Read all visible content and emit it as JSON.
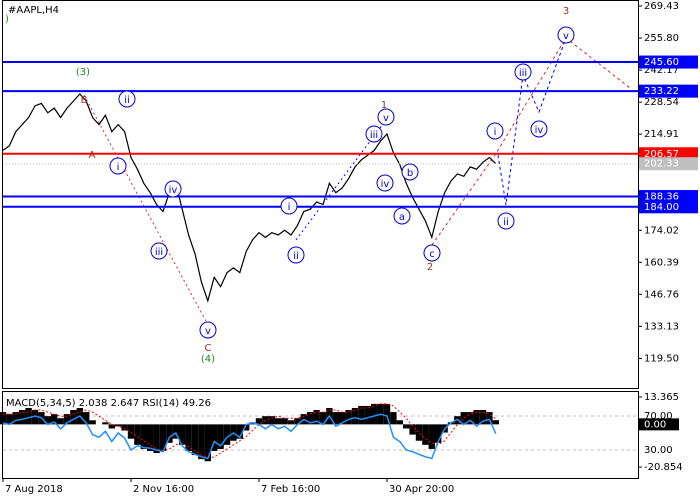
{
  "chart_data": [
    {
      "type": "line",
      "title": "#AAPL,H4",
      "color": "#000000",
      "categories": [
        "7 Aug 2018",
        null,
        null,
        null,
        null,
        null,
        null,
        null,
        null,
        null,
        null,
        null,
        null,
        null,
        null,
        null,
        null,
        null,
        null,
        null,
        "2 Nov 16:00",
        null,
        null,
        null,
        null,
        null,
        null,
        null,
        null,
        null,
        null,
        null,
        null,
        null,
        null,
        null,
        null,
        null,
        null,
        null,
        "7 Feb 16:00",
        null,
        null,
        null,
        null,
        null,
        null,
        null,
        null,
        null,
        null,
        null,
        null,
        null,
        null,
        null,
        null,
        null,
        null,
        null,
        "30 Apr 20:00",
        null,
        null,
        null,
        null,
        null,
        null,
        null,
        null,
        null,
        null,
        null,
        null,
        null,
        null,
        null,
        null,
        null
      ],
      "values": [
        208,
        210,
        216,
        219,
        222,
        227,
        228,
        224,
        226,
        222,
        226,
        229,
        232,
        229,
        222,
        219,
        223,
        216,
        219,
        216,
        205,
        200,
        194,
        190,
        185,
        182,
        190,
        194,
        183,
        172,
        164,
        152,
        144,
        154,
        150,
        156,
        158,
        156,
        165,
        170,
        173,
        171,
        173,
        172,
        174,
        172,
        176,
        182,
        183,
        186,
        185,
        194,
        190,
        192,
        196,
        201,
        204,
        206,
        208,
        212,
        215,
        207,
        202,
        194,
        188,
        183,
        178,
        171,
        182,
        190,
        195,
        198,
        197,
        201,
        200,
        203,
        205,
        202.33
      ],
      "ylim": [
        106.9,
        272.0
      ],
      "yticks": [
        269.43,
        {
          "value": 255.8,
          "label": "255.80"
        },
        242.17,
        228.54,
        214.91,
        174.02,
        160.39,
        146.76,
        133.13,
        {
          "value": 119.5,
          "label": "119.50"
        }
      ],
      "levels": [
        {
          "value": 245.6,
          "label": "245.60",
          "color": "#0000ff"
        },
        {
          "value": 233.22,
          "label": "233.22",
          "color": "#0000ff"
        },
        {
          "value": 206.57,
          "label": "206.57",
          "color": "#ff0000"
        },
        {
          "value": 188.36,
          "label": "188.36",
          "color": "#0000ff"
        },
        {
          "value": 184.0,
          "label": "184.00",
          "color": "#0000ff"
        }
      ],
      "current_price": {
        "value": 202.33,
        "label": "202.33"
      },
      "annotations": [
        {
          "text": ")",
          "color": "#1a8f1a",
          "circled": false
        },
        {
          "text": "(3)",
          "color": "#1a8f1a",
          "circled": false
        },
        {
          "text": "B",
          "color": "#a0302a",
          "circled": false
        },
        {
          "text": "A",
          "color": "#a0302a",
          "circled": false
        },
        {
          "text": "ii",
          "color": "#0000cc",
          "circled": true
        },
        {
          "text": "i",
          "color": "#0000cc",
          "circled": true
        },
        {
          "text": "iv",
          "color": "#0000cc",
          "circled": true
        },
        {
          "text": "iii",
          "color": "#0000cc",
          "circled": true
        },
        {
          "text": "v",
          "color": "#0000cc",
          "circled": true
        },
        {
          "text": "C",
          "color": "#a0302a",
          "circled": false
        },
        {
          "text": "(4)",
          "color": "#1a8f1a",
          "circled": false
        },
        {
          "text": "1",
          "color": "#a0302a",
          "circled": false
        },
        {
          "text": "v",
          "color": "#0000cc",
          "circled": true
        },
        {
          "text": "iii",
          "color": "#0000cc",
          "circled": true
        },
        {
          "text": "b",
          "color": "#0000cc",
          "circled": true
        },
        {
          "text": "iv",
          "color": "#0000cc",
          "circled": true
        },
        {
          "text": "a",
          "color": "#0000cc",
          "circled": true
        },
        {
          "text": "c",
          "color": "#0000cc",
          "circled": true
        },
        {
          "text": "2",
          "color": "#a0302a",
          "circled": false
        },
        {
          "text": "i",
          "color": "#0000cc",
          "circled": true
        },
        {
          "text": "ii",
          "color": "#0000cc",
          "circled": true
        },
        {
          "text": "3",
          "color": "#a0302a",
          "circled": false
        },
        {
          "text": "v",
          "color": "#0000cc",
          "circled": true
        },
        {
          "text": "iii",
          "color": "#0000cc",
          "circled": true
        },
        {
          "text": "iv",
          "color": "#0000cc",
          "circled": true
        },
        {
          "text": "i",
          "color": "#0000cc",
          "circled": true
        },
        {
          "text": "ii",
          "color": "#0000cc",
          "circled": true
        }
      ]
    },
    {
      "type": "indicator",
      "title": "MACD(5,34,5) 2.038 2.647 RSI(14) 49.26",
      "ylim": [
        -26.2,
        16.3
      ],
      "yticks": [
        13.365,
        {
          "value": 0,
          "label": "0.00"
        },
        -20.854
      ],
      "y2lim": [
        -2.9,
        99.4
      ],
      "y2ticks": [
        {
          "value": 70,
          "label": "70.00"
        },
        {
          "value": 30,
          "label": "30.00"
        }
      ],
      "series": [
        {
          "name": "MACD",
          "color": "#000000",
          "kind": "histogram",
          "values": [
            6,
            5,
            6,
            7,
            8,
            7,
            6,
            4,
            5,
            3,
            5,
            7,
            8,
            6,
            2,
            0,
            1,
            -2,
            -1,
            -3,
            -7,
            -10,
            -12,
            -13,
            -14,
            -13,
            -9,
            -7,
            -10,
            -13,
            -15,
            -17,
            -18,
            -13,
            -12,
            -10,
            -8,
            -7,
            -3,
            1,
            3,
            4,
            4,
            3,
            3,
            2,
            3,
            5,
            6,
            7,
            6,
            8,
            6,
            6,
            7,
            8,
            9,
            9,
            10,
            10,
            10,
            6,
            2,
            -2,
            -5,
            -8,
            -10,
            -12,
            -9,
            -4,
            1,
            4,
            6,
            6,
            7,
            7,
            6,
            2.038
          ]
        },
        {
          "name": "Signal",
          "color": "#ff0000",
          "kind": "dotted",
          "values": [
            5,
            5,
            5,
            6,
            6,
            7,
            7,
            6,
            5,
            4,
            4,
            5,
            6,
            7,
            6,
            4,
            2,
            0,
            -1,
            -2,
            -4,
            -6,
            -8,
            -10,
            -12,
            -13,
            -12,
            -10,
            -9,
            -11,
            -13,
            -15,
            -16,
            -16,
            -14,
            -12,
            -10,
            -8,
            -6,
            -3,
            0,
            2,
            3,
            4,
            3,
            3,
            3,
            4,
            5,
            6,
            6,
            7,
            7,
            6,
            6,
            7,
            8,
            8,
            9,
            10,
            10,
            9,
            6,
            3,
            -1,
            -4,
            -7,
            -9,
            -10,
            -8,
            -4,
            0,
            3,
            5,
            6,
            6,
            5,
            2.647
          ]
        },
        {
          "name": "RSI",
          "color": "#1e90ff",
          "kind": "line",
          "axis": "y2",
          "values": [
            62,
            60,
            65,
            66,
            68,
            70,
            68,
            60,
            63,
            55,
            62,
            66,
            70,
            62,
            48,
            45,
            52,
            40,
            50,
            44,
            30,
            35,
            33,
            32,
            30,
            28,
            45,
            50,
            35,
            28,
            25,
            22,
            20,
            40,
            35,
            45,
            50,
            45,
            60,
            62,
            60,
            55,
            60,
            55,
            58,
            52,
            60,
            66,
            62,
            64,
            60,
            70,
            58,
            62,
            66,
            68,
            66,
            68,
            70,
            72,
            70,
            45,
            40,
            30,
            28,
            25,
            22,
            20,
            40,
            55,
            62,
            66,
            60,
            65,
            58,
            64,
            66,
            49.26
          ]
        }
      ]
    }
  ]
}
